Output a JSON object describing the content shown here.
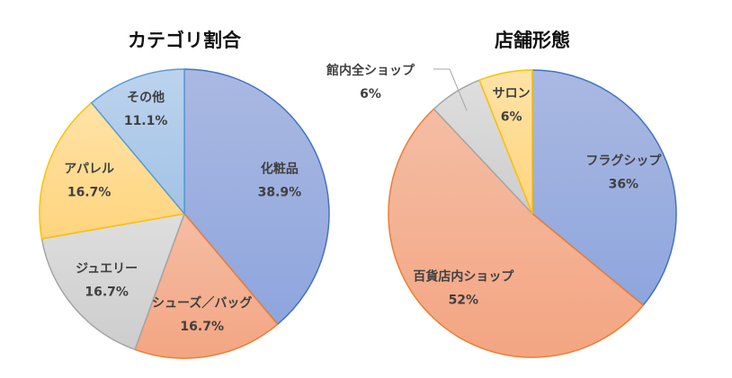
{
  "chart_data": [
    {
      "type": "pie",
      "title": "カテゴリ割合",
      "start": "top, clockwise",
      "slices": [
        {
          "label": "化粧品",
          "value": 38.9,
          "value_label": "38.9%",
          "fill": "#8ea5dd",
          "fill_light": "#aab9e2",
          "stroke": "#4472c4"
        },
        {
          "label": "シューズ／バッグ",
          "value": 16.7,
          "value_label": "16.7%",
          "fill": "#f3a582",
          "fill_light": "#f5bda4",
          "stroke": "#ed7d31"
        },
        {
          "label": "ジュエリー",
          "value": 16.7,
          "value_label": "16.7%",
          "fill": "#cdcdcd",
          "fill_light": "#dedede",
          "stroke": "#a5a5a5"
        },
        {
          "label": "アパレル",
          "value": 16.7,
          "value_label": "16.7%",
          "fill": "#ffd47e",
          "fill_light": "#ffe3a6",
          "stroke": "#ffc000"
        },
        {
          "label": "その他",
          "value": 11.1,
          "value_label": "11.1%",
          "fill": "#a2c3e6",
          "fill_light": "#bcd3ee",
          "stroke": "#5b9bd5"
        }
      ]
    },
    {
      "type": "pie",
      "title": "店舗形態",
      "start": "top, clockwise",
      "slices": [
        {
          "label": "フラグシップ",
          "value": 36,
          "value_label": "36%",
          "fill": "#8ea5dd",
          "fill_light": "#aab9e2",
          "stroke": "#4472c4"
        },
        {
          "label": "百貨店内ショップ",
          "value": 52,
          "value_label": "52%",
          "fill": "#f3a582",
          "fill_light": "#f5bda4",
          "stroke": "#ed7d31"
        },
        {
          "label": "館内全ショップ",
          "value": 6,
          "value_label": "6%",
          "fill": "#cdcdcd",
          "fill_light": "#dedede",
          "stroke": "#a5a5a5",
          "leader": true
        },
        {
          "label": "サロン",
          "value": 6,
          "value_label": "6%",
          "fill": "#ffd47e",
          "fill_light": "#ffe3a6",
          "stroke": "#ffc000"
        }
      ]
    }
  ]
}
